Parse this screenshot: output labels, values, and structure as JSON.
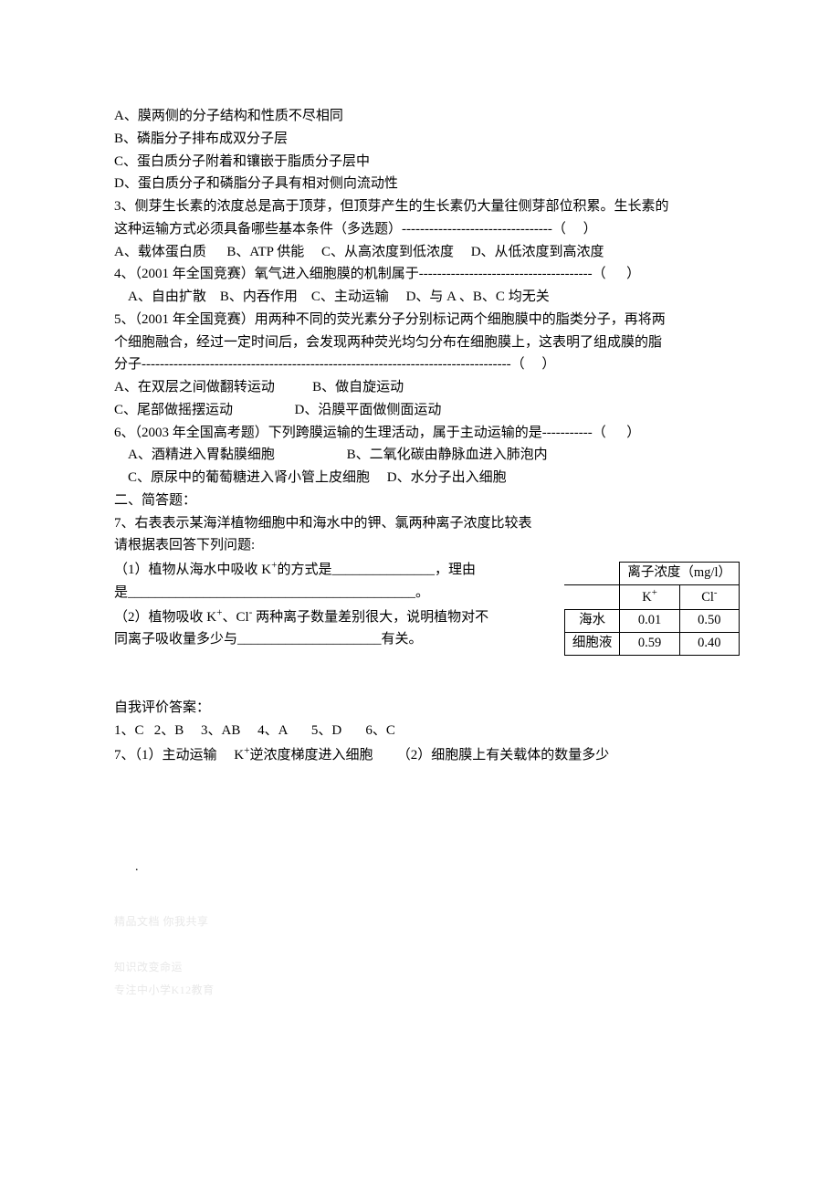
{
  "lines": {
    "l1": "A、膜两侧的分子结构和性质不尽相同",
    "l2": "B、磷脂分子排布成双分子层",
    "l3": "C、蛋白质分子附着和镶嵌于脂质分子层中",
    "l4": "D、蛋白质分子和磷脂分子具有相对侧向流动性",
    "q3a": "3、侧芽生长素的浓度总是高于顶芽，但顶芽产生的生长素仍大量往侧芽部位积累。生长素的",
    "q3b": "这种运输方式必须具备哪些基本条件（多选题）---------------------------------（     ）",
    "q3c": "A、载体蛋白质      B、ATP 供能     C、从高浓度到低浓度     D、从低浓度到高浓度",
    "q4a": "4、（2001 年全国竞赛）氧气进入细胞膜的机制属于--------------------------------------（      ）",
    "q4b": "    A、自由扩散    B、内吞作用    C、主动运输     D、与 A 、B、C 均无关",
    "q5a": "5、（2001 年全国竞赛）用两种不同的荧光素分子分别标记两个细胞膜中的脂类分子，再将两",
    "q5b": "个细胞融合，经过一定时间后，会发现两种荧光均匀分布在细胞膜上，这表明了组成膜的脂",
    "q5c": "分子---------------------------------------------------------------------------------（     ）",
    "q5d": "A、在双层之间做翻转运动           B、做自旋运动",
    "q5e": "C、尾部做摇摆运动                  D、沿膜平面做侧面运动",
    "q6a": "6、（2003 年全国高考题）下列跨膜运输的生理活动，属于主动运输的是-----------（      ）",
    "q6b": "    A、酒精进入胃黏膜细胞                     B、二氧化碳由静脉血进入肺泡内",
    "q6c": "    C、原尿中的葡萄糖进入肾小管上皮细胞     D、水分子出入细胞",
    "sec2": "二、简答题：",
    "q7a": "7、右表表示某海洋植物细胞中和海水中的钾、氯两种离子浓度比较表",
    "q7b": "请根据表回答下列问题:",
    "q7c_pre": "（1）植物从海水中吸收 K",
    "q7c_post": "的方式是_______________，理由",
    "q7d": "是__________________________________________。",
    "q7e_pre": "（2）植物吸收 K",
    "q7e_mid": "、Cl",
    "q7e_post": " 两种离子数量差别很大，说明植物对不",
    "q7f": "同离子吸收量多少与_____________________有关。"
  },
  "table": {
    "header_span": "离子浓度（mg/l）",
    "k": "K",
    "cl": "Cl",
    "row1_label": "海水",
    "row1_k": "0.01",
    "row1_cl": "0.50",
    "row2_label": "细胞液",
    "row2_k": "0.59",
    "row2_cl": "0.40"
  },
  "answers": {
    "title": "自我评价答案：",
    "line1": "1、C   2、B     3、AB     4、A       5、D       6、C",
    "line2_a": "7、（1）主动运输     K",
    "line2_b": "逆浓度梯度进入细胞       （2）细胞膜上有关载体的数量多少"
  },
  "watermarks": {
    "w1": "精品文档 你我共享",
    "w2": "知识改变命运",
    "w3": "专注中小学K12教育"
  },
  "sup_plus": "+",
  "sup_minus": "-"
}
